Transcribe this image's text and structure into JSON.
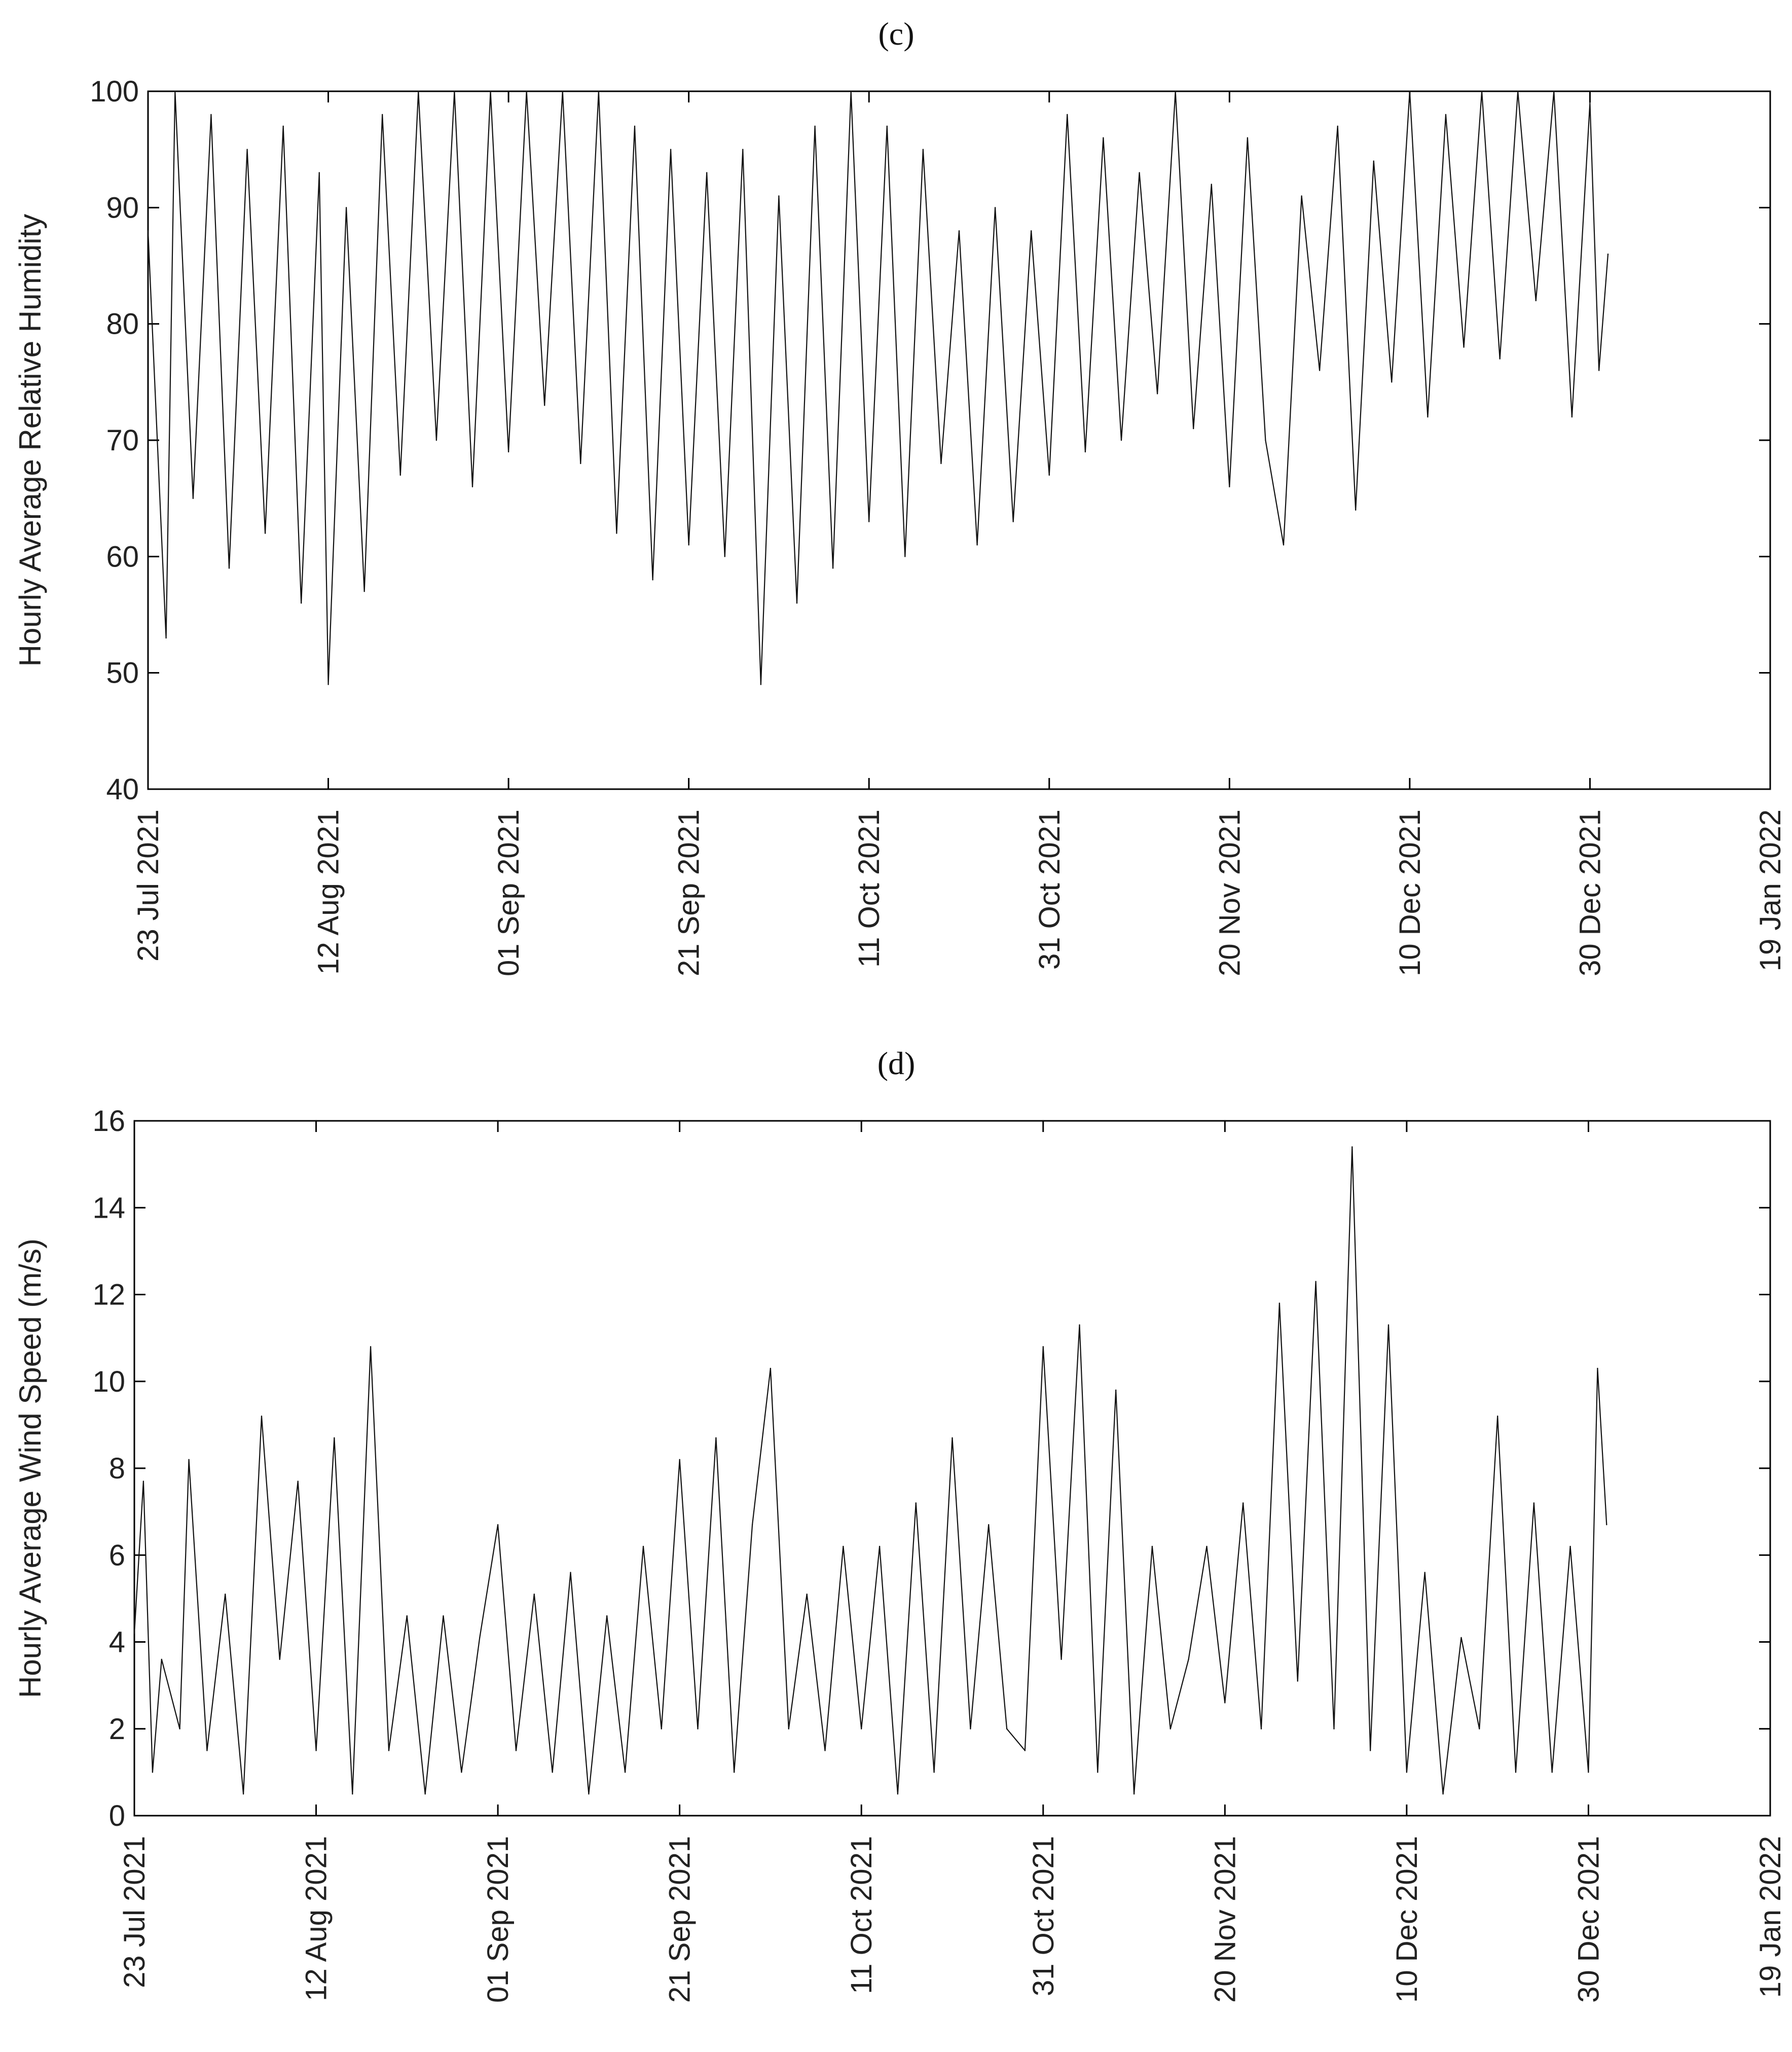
{
  "chart_data": [
    {
      "type": "line",
      "panel_label": "(c)",
      "ylabel": "Hourly Average Relative Humidity",
      "xlabel": "",
      "xlim": [
        "2021-07-23",
        "2022-01-19"
      ],
      "xticks": [
        "23 Jul 2021",
        "12 Aug 2021",
        "01 Sep 2021",
        "21 Sep 2021",
        "11 Oct 2021",
        "31 Oct 2021",
        "20 Nov 2021",
        "10 Dec 2021",
        "30 Dec 2021",
        "19 Jan 2022"
      ],
      "ylim": [
        40,
        100
      ],
      "yticks": [
        40,
        50,
        60,
        70,
        80,
        90,
        100
      ],
      "grid": false,
      "series": [
        {
          "x": [
            "2021-07-23",
            "2021-07-25",
            "2021-07-26",
            "2021-07-28",
            "2021-07-30",
            "2021-08-01",
            "2021-08-03",
            "2021-08-05",
            "2021-08-07",
            "2021-08-09",
            "2021-08-11",
            "2021-08-12",
            "2021-08-14",
            "2021-08-16",
            "2021-08-18",
            "2021-08-20",
            "2021-08-22",
            "2021-08-24",
            "2021-08-26",
            "2021-08-28",
            "2021-08-30",
            "2021-09-01",
            "2021-09-03",
            "2021-09-05",
            "2021-09-07",
            "2021-09-09",
            "2021-09-11",
            "2021-09-13",
            "2021-09-15",
            "2021-09-17",
            "2021-09-19",
            "2021-09-21",
            "2021-09-23",
            "2021-09-25",
            "2021-09-27",
            "2021-09-29",
            "2021-10-01",
            "2021-10-03",
            "2021-10-05",
            "2021-10-07",
            "2021-10-09",
            "2021-10-11",
            "2021-10-13",
            "2021-10-15",
            "2021-10-17",
            "2021-10-19",
            "2021-10-21",
            "2021-10-23",
            "2021-10-25",
            "2021-10-27",
            "2021-10-29",
            "2021-10-31",
            "2021-11-02",
            "2021-11-04",
            "2021-11-06",
            "2021-11-08",
            "2021-11-10",
            "2021-11-12",
            "2021-11-14",
            "2021-11-16",
            "2021-11-18",
            "2021-11-20",
            "2021-11-22",
            "2021-11-24",
            "2021-11-26",
            "2021-11-28",
            "2021-11-30",
            "2021-12-02",
            "2021-12-04",
            "2021-12-06",
            "2021-12-08",
            "2021-12-10",
            "2021-12-12",
            "2021-12-14",
            "2021-12-16",
            "2021-12-18",
            "2021-12-20",
            "2021-12-22",
            "2021-12-24",
            "2021-12-26",
            "2021-12-28",
            "2021-12-30",
            "2021-12-31",
            "2022-01-01"
          ],
          "values": [
            88,
            53,
            100,
            65,
            98,
            59,
            95,
            62,
            97,
            56,
            93,
            49,
            90,
            57,
            98,
            67,
            100,
            70,
            100,
            66,
            100,
            69,
            100,
            73,
            100,
            68,
            100,
            62,
            97,
            58,
            95,
            61,
            93,
            60,
            95,
            49,
            91,
            56,
            97,
            59,
            100,
            63,
            97,
            60,
            95,
            68,
            88,
            61,
            90,
            63,
            88,
            67,
            98,
            69,
            96,
            70,
            93,
            74,
            100,
            71,
            92,
            66,
            96,
            70,
            61,
            91,
            76,
            97,
            64,
            94,
            75,
            100,
            72,
            98,
            78,
            100,
            77,
            100,
            82,
            100,
            72,
            99,
            76,
            86
          ]
        }
      ]
    },
    {
      "type": "line",
      "panel_label": "(d)",
      "ylabel": "Hourly Average Wind Speed (m/s)",
      "xlabel": "",
      "xlim": [
        "2021-07-23",
        "2022-01-19"
      ],
      "xticks": [
        "23 Jul 2021",
        "12 Aug 2021",
        "01 Sep 2021",
        "21 Sep 2021",
        "11 Oct 2021",
        "31 Oct 2021",
        "20 Nov 2021",
        "10 Dec 2021",
        "30 Dec 2021",
        "19 Jan 2022"
      ],
      "ylim": [
        0,
        16
      ],
      "yticks": [
        0,
        2,
        4,
        6,
        8,
        10,
        12,
        14,
        16
      ],
      "grid": false,
      "series": [
        {
          "x": [
            "2021-07-23",
            "2021-07-24",
            "2021-07-25",
            "2021-07-26",
            "2021-07-28",
            "2021-07-29",
            "2021-07-31",
            "2021-08-02",
            "2021-08-04",
            "2021-08-06",
            "2021-08-08",
            "2021-08-10",
            "2021-08-12",
            "2021-08-14",
            "2021-08-16",
            "2021-08-18",
            "2021-08-20",
            "2021-08-22",
            "2021-08-24",
            "2021-08-26",
            "2021-08-28",
            "2021-08-30",
            "2021-09-01",
            "2021-09-03",
            "2021-09-05",
            "2021-09-07",
            "2021-09-09",
            "2021-09-11",
            "2021-09-13",
            "2021-09-15",
            "2021-09-17",
            "2021-09-19",
            "2021-09-21",
            "2021-09-23",
            "2021-09-25",
            "2021-09-27",
            "2021-09-29",
            "2021-10-01",
            "2021-10-03",
            "2021-10-05",
            "2021-10-07",
            "2021-10-09",
            "2021-10-11",
            "2021-10-13",
            "2021-10-15",
            "2021-10-17",
            "2021-10-19",
            "2021-10-21",
            "2021-10-23",
            "2021-10-25",
            "2021-10-27",
            "2021-10-29",
            "2021-10-31",
            "2021-11-02",
            "2021-11-04",
            "2021-11-06",
            "2021-11-08",
            "2021-11-10",
            "2021-11-12",
            "2021-11-14",
            "2021-11-16",
            "2021-11-18",
            "2021-11-20",
            "2021-11-22",
            "2021-11-24",
            "2021-11-26",
            "2021-11-28",
            "2021-11-30",
            "2021-12-02",
            "2021-12-04",
            "2021-12-06",
            "2021-12-08",
            "2021-12-10",
            "2021-12-12",
            "2021-12-14",
            "2021-12-16",
            "2021-12-18",
            "2021-12-20",
            "2021-12-22",
            "2021-12-24",
            "2021-12-26",
            "2021-12-28",
            "2021-12-30",
            "2021-12-31",
            "2022-01-01"
          ],
          "values": [
            4.2,
            7.7,
            1.0,
            3.6,
            2.0,
            8.2,
            1.5,
            5.1,
            0.5,
            9.2,
            3.6,
            7.7,
            1.5,
            8.7,
            0.5,
            10.8,
            1.5,
            4.6,
            0.5,
            4.6,
            1.0,
            4.1,
            6.7,
            1.5,
            5.1,
            1.0,
            5.6,
            0.5,
            4.6,
            1.0,
            6.2,
            2.0,
            8.2,
            2.0,
            8.7,
            1.0,
            6.7,
            10.3,
            2.0,
            5.1,
            1.5,
            6.2,
            2.0,
            6.2,
            0.5,
            7.2,
            1.0,
            8.7,
            2.0,
            6.7,
            2.0,
            1.5,
            10.8,
            3.6,
            11.3,
            1.0,
            9.8,
            0.5,
            6.2,
            2.0,
            3.6,
            6.2,
            2.6,
            7.2,
            2.0,
            11.8,
            3.1,
            12.3,
            2.0,
            15.4,
            1.5,
            11.3,
            1.0,
            5.6,
            0.5,
            4.1,
            2.0,
            9.2,
            1.0,
            7.2,
            1.0,
            6.2,
            1.0,
            10.3,
            6.7
          ]
        }
      ]
    }
  ]
}
